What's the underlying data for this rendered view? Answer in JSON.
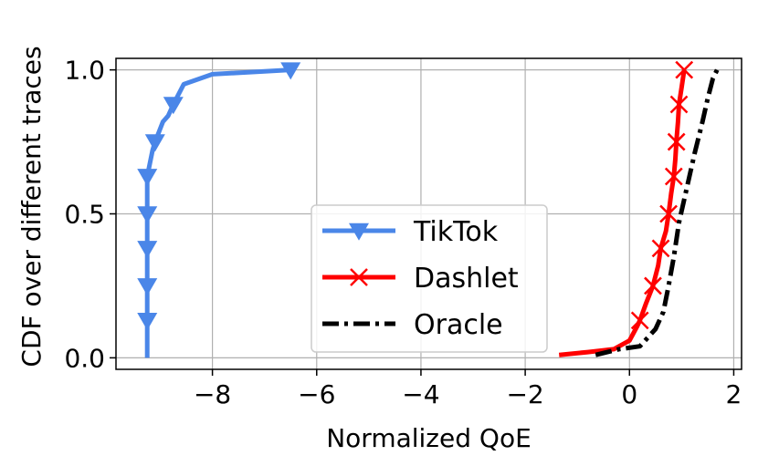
{
  "chart_data": {
    "type": "line",
    "xlabel": "Normalized QoE",
    "ylabel": "CDF over different traces",
    "xlim": [
      -9.85,
      2.15
    ],
    "ylim": [
      -0.04,
      1.04
    ],
    "x_ticks": [
      -8,
      -6,
      -4,
      -2,
      0,
      2
    ],
    "y_ticks": [
      0.0,
      0.5,
      1.0
    ],
    "x_tick_labels": [
      "−8",
      "−6",
      "−4",
      "−2",
      "0",
      "2"
    ],
    "y_tick_labels": [
      "0.0",
      "0.5",
      "1.0"
    ],
    "grid": true,
    "legend_position": "lower center",
    "series": [
      {
        "name": "TikTok",
        "color": "#4a86e8",
        "line_style": "solid",
        "marker": "triangle-down",
        "points": [
          [
            -9.25,
            0.0
          ],
          [
            -9.25,
            0.13
          ],
          [
            -9.25,
            0.25
          ],
          [
            -9.25,
            0.38
          ],
          [
            -9.25,
            0.5
          ],
          [
            -9.25,
            0.63
          ],
          [
            -9.15,
            0.72
          ],
          [
            -9.1,
            0.75
          ],
          [
            -8.95,
            0.82
          ],
          [
            -8.85,
            0.84
          ],
          [
            -8.75,
            0.88
          ],
          [
            -8.55,
            0.95
          ],
          [
            -8.0,
            0.985
          ],
          [
            -7.0,
            0.995
          ],
          [
            -6.5,
            1.0
          ]
        ],
        "marker_points": [
          [
            -9.25,
            0.13
          ],
          [
            -9.25,
            0.25
          ],
          [
            -9.25,
            0.38
          ],
          [
            -9.25,
            0.5
          ],
          [
            -9.25,
            0.63
          ],
          [
            -9.1,
            0.75
          ],
          [
            -8.75,
            0.88
          ],
          [
            -6.5,
            1.0
          ]
        ]
      },
      {
        "name": "Dashlet",
        "color": "#ff0000",
        "line_style": "solid",
        "marker": "x",
        "points": [
          [
            -1.35,
            0.01
          ],
          [
            -0.8,
            0.02
          ],
          [
            -0.3,
            0.03
          ],
          [
            0.0,
            0.06
          ],
          [
            0.15,
            0.11
          ],
          [
            0.2,
            0.13
          ],
          [
            0.32,
            0.19
          ],
          [
            0.45,
            0.25
          ],
          [
            0.55,
            0.32
          ],
          [
            0.6,
            0.38
          ],
          [
            0.7,
            0.44
          ],
          [
            0.75,
            0.5
          ],
          [
            0.8,
            0.57
          ],
          [
            0.85,
            0.63
          ],
          [
            0.88,
            0.69
          ],
          [
            0.9,
            0.75
          ],
          [
            0.93,
            0.82
          ],
          [
            0.95,
            0.88
          ],
          [
            1.0,
            0.94
          ],
          [
            1.05,
            1.0
          ]
        ],
        "marker_points": [
          [
            0.2,
            0.13
          ],
          [
            0.45,
            0.25
          ],
          [
            0.6,
            0.38
          ],
          [
            0.75,
            0.5
          ],
          [
            0.85,
            0.63
          ],
          [
            0.9,
            0.75
          ],
          [
            0.95,
            0.88
          ],
          [
            1.05,
            1.0
          ]
        ]
      },
      {
        "name": "Oracle",
        "color": "#000000",
        "line_style": "dashdot",
        "marker": "none",
        "points": [
          [
            -0.65,
            0.01
          ],
          [
            -0.2,
            0.03
          ],
          [
            0.2,
            0.04
          ],
          [
            0.5,
            0.1
          ],
          [
            0.65,
            0.16
          ],
          [
            0.75,
            0.25
          ],
          [
            0.85,
            0.35
          ],
          [
            0.95,
            0.47
          ],
          [
            1.05,
            0.55
          ],
          [
            1.15,
            0.63
          ],
          [
            1.25,
            0.71
          ],
          [
            1.4,
            0.82
          ],
          [
            1.5,
            0.9
          ],
          [
            1.6,
            0.97
          ],
          [
            1.68,
            1.0
          ]
        ]
      }
    ]
  }
}
